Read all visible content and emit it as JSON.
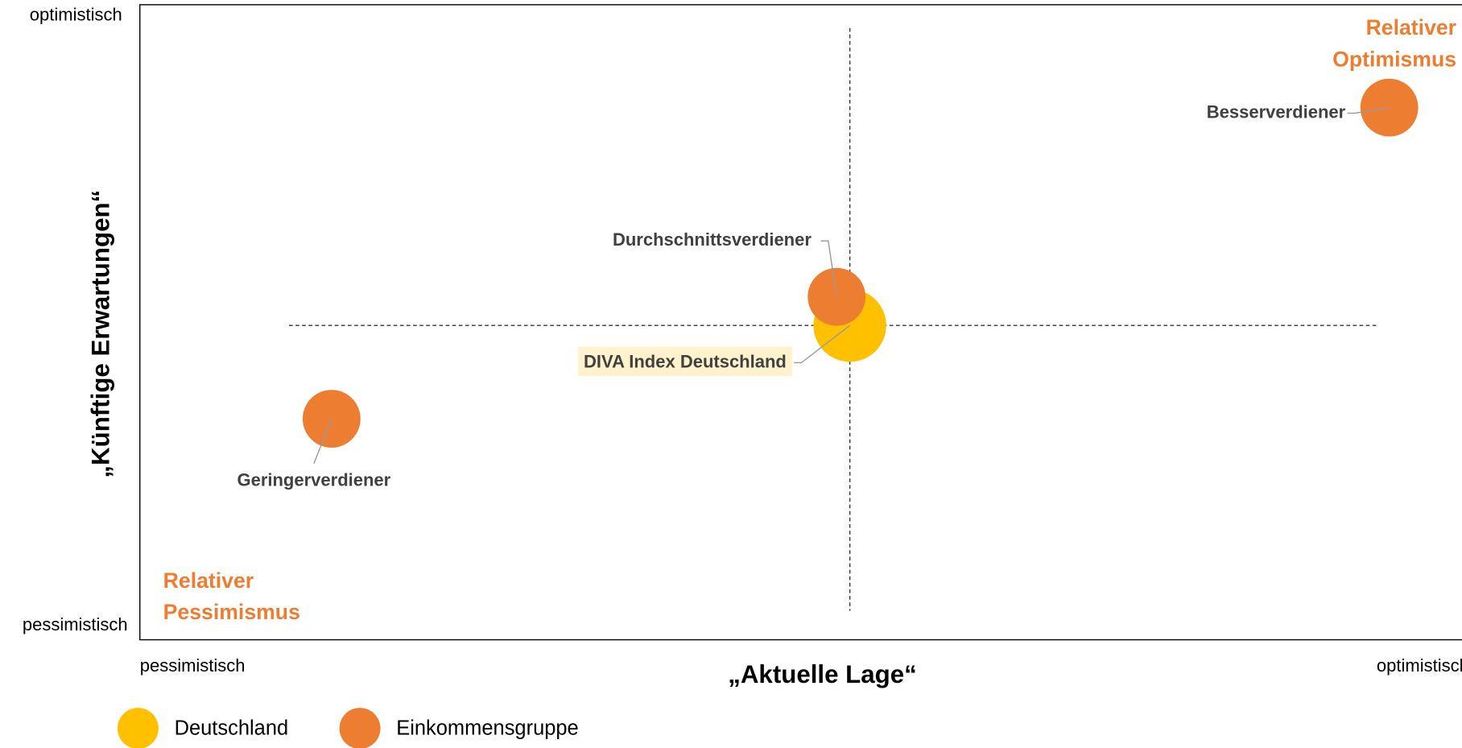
{
  "chart_data": {
    "type": "bubble",
    "x_label": "„Aktuelle Lage“",
    "y_label": "„Künftige Erwartungen“",
    "xlim": [
      0,
      100
    ],
    "ylim": [
      0,
      100
    ],
    "xticks": [
      {
        "value": 0,
        "label": "pessimistisch"
      },
      {
        "value": 100,
        "label": "optimistisch"
      }
    ],
    "yticks": [
      {
        "value": 0,
        "label": "pessimistisch"
      },
      {
        "value": 100,
        "label": "optimistisch"
      }
    ],
    "annotations": [
      "Relativer Optimismus",
      "Relativer Pessimismus"
    ],
    "series": [
      {
        "name": "Deutschland",
        "color": "#FFC000",
        "labels": [
          "DIVA Index Deutschland"
        ],
        "x": [
          53.7
        ],
        "values": [
          49.5
        ],
        "sizes": [
          39
        ]
      },
      {
        "name": "Einkommensgruppe",
        "color": "#ED7D31",
        "labels": [
          "Besserverdiener",
          "Durchschnittsverdiener",
          "Geringerverdiener"
        ],
        "x": [
          94.5,
          52.7,
          14.5
        ],
        "values": [
          83.8,
          54.0,
          34.8
        ],
        "sizes": [
          31,
          31,
          31
        ]
      }
    ]
  }
}
